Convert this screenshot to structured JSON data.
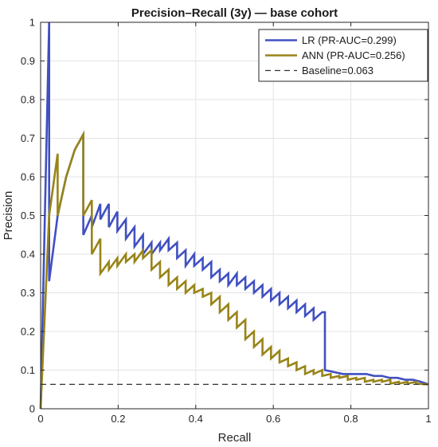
{
  "chart_data": {
    "type": "line",
    "title": "Precision–Recall (3y) — base cohort",
    "xlabel": "Recall",
    "ylabel": "Precision",
    "xlim": [
      0,
      1
    ],
    "ylim": [
      0,
      1
    ],
    "xticks": [
      0,
      0.2,
      0.4,
      0.6,
      0.8,
      1
    ],
    "xtick_labels": [
      "0",
      "0.2",
      "0.4",
      "0.6",
      "0.8",
      "1"
    ],
    "yticks": [
      0,
      0.1,
      0.2,
      0.3,
      0.4,
      0.5,
      0.6,
      0.7,
      0.8,
      0.9,
      1
    ],
    "ytick_labels": [
      "0",
      "0.1",
      "0.2",
      "0.3",
      "0.4",
      "0.5",
      "0.6",
      "0.7",
      "0.8",
      "0.9",
      "1"
    ],
    "grid": true,
    "legend_position": "top-right",
    "series": [
      {
        "name": "LR (PR-AUC=0.299)",
        "color": "#4050c0",
        "dash": "solid",
        "x": [
          0.0,
          0.022,
          0.022,
          0.044,
          0.066,
          0.088,
          0.11,
          0.11,
          0.132,
          0.132,
          0.154,
          0.154,
          0.176,
          0.176,
          0.198,
          0.198,
          0.22,
          0.22,
          0.242,
          0.242,
          0.264,
          0.264,
          0.286,
          0.286,
          0.308,
          0.308,
          0.33,
          0.33,
          0.352,
          0.352,
          0.374,
          0.374,
          0.396,
          0.396,
          0.418,
          0.418,
          0.44,
          0.44,
          0.462,
          0.462,
          0.484,
          0.484,
          0.506,
          0.506,
          0.528,
          0.528,
          0.55,
          0.55,
          0.572,
          0.572,
          0.594,
          0.594,
          0.616,
          0.616,
          0.638,
          0.638,
          0.66,
          0.66,
          0.682,
          0.682,
          0.704,
          0.704,
          0.726,
          0.733,
          0.733,
          0.78,
          0.8,
          0.82,
          0.84,
          0.86,
          0.88,
          0.9,
          0.92,
          0.94,
          0.96,
          0.98,
          1.0
        ],
        "y": [
          0.0,
          1.0,
          0.33,
          0.5,
          0.6,
          0.67,
          0.71,
          0.45,
          0.5,
          0.47,
          0.53,
          0.49,
          0.53,
          0.47,
          0.51,
          0.46,
          0.49,
          0.44,
          0.47,
          0.42,
          0.45,
          0.4,
          0.43,
          0.4,
          0.43,
          0.41,
          0.44,
          0.41,
          0.43,
          0.39,
          0.41,
          0.37,
          0.4,
          0.37,
          0.39,
          0.36,
          0.38,
          0.34,
          0.36,
          0.33,
          0.35,
          0.32,
          0.35,
          0.32,
          0.34,
          0.31,
          0.33,
          0.3,
          0.32,
          0.29,
          0.31,
          0.28,
          0.3,
          0.27,
          0.29,
          0.26,
          0.28,
          0.25,
          0.27,
          0.24,
          0.26,
          0.23,
          0.25,
          0.25,
          0.1,
          0.09,
          0.09,
          0.09,
          0.09,
          0.085,
          0.085,
          0.08,
          0.08,
          0.075,
          0.075,
          0.07,
          0.063
        ]
      },
      {
        "name": "ANN (PR-AUC=0.256)",
        "color": "#988418",
        "dash": "solid",
        "x": [
          0.0,
          0.022,
          0.044,
          0.044,
          0.066,
          0.088,
          0.11,
          0.11,
          0.132,
          0.132,
          0.154,
          0.154,
          0.176,
          0.176,
          0.198,
          0.198,
          0.22,
          0.22,
          0.242,
          0.242,
          0.264,
          0.264,
          0.286,
          0.286,
          0.308,
          0.308,
          0.33,
          0.33,
          0.352,
          0.352,
          0.374,
          0.374,
          0.396,
          0.396,
          0.418,
          0.418,
          0.44,
          0.44,
          0.462,
          0.462,
          0.484,
          0.484,
          0.506,
          0.506,
          0.528,
          0.528,
          0.55,
          0.55,
          0.572,
          0.572,
          0.594,
          0.594,
          0.616,
          0.616,
          0.638,
          0.638,
          0.66,
          0.66,
          0.682,
          0.682,
          0.704,
          0.704,
          0.726,
          0.726,
          0.748,
          0.748,
          0.77,
          0.77,
          0.792,
          0.792,
          0.814,
          0.814,
          0.836,
          0.836,
          0.858,
          0.858,
          0.88,
          0.88,
          0.902,
          0.902,
          0.924,
          0.924,
          0.946,
          0.946,
          0.968,
          0.968,
          1.0
        ],
        "y": [
          0.0,
          0.5,
          0.66,
          0.5,
          0.6,
          0.67,
          0.71,
          0.5,
          0.54,
          0.4,
          0.44,
          0.35,
          0.38,
          0.36,
          0.39,
          0.37,
          0.4,
          0.38,
          0.4,
          0.38,
          0.41,
          0.39,
          0.41,
          0.36,
          0.38,
          0.34,
          0.36,
          0.32,
          0.34,
          0.31,
          0.33,
          0.3,
          0.32,
          0.3,
          0.31,
          0.29,
          0.3,
          0.27,
          0.29,
          0.25,
          0.27,
          0.23,
          0.25,
          0.21,
          0.23,
          0.18,
          0.2,
          0.16,
          0.18,
          0.14,
          0.16,
          0.13,
          0.15,
          0.12,
          0.13,
          0.11,
          0.12,
          0.1,
          0.11,
          0.09,
          0.1,
          0.09,
          0.1,
          0.085,
          0.09,
          0.08,
          0.085,
          0.08,
          0.085,
          0.075,
          0.08,
          0.075,
          0.08,
          0.07,
          0.075,
          0.07,
          0.075,
          0.07,
          0.075,
          0.065,
          0.07,
          0.065,
          0.07,
          0.065,
          0.07,
          0.065,
          0.063
        ]
      },
      {
        "name": "Baseline=0.063",
        "color": "#333333",
        "dash": "dashed",
        "x": [
          0,
          1
        ],
        "y": [
          0.063,
          0.063
        ]
      }
    ]
  }
}
